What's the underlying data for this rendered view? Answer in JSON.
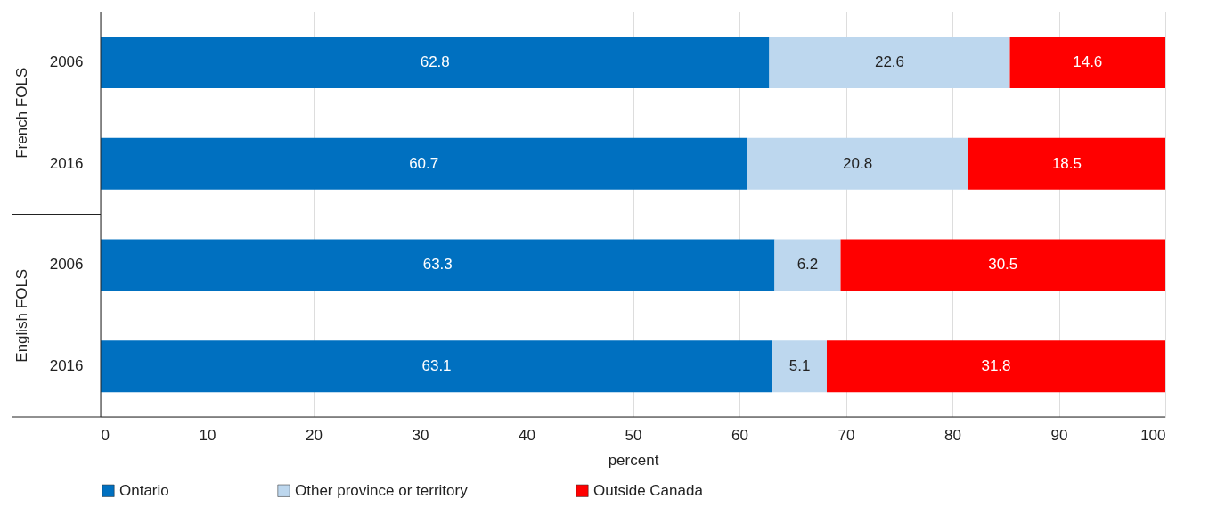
{
  "chart_data": {
    "type": "bar",
    "orientation": "horizontal",
    "stacked": true,
    "categories": [
      "2006",
      "2016",
      "2006",
      "2016"
    ],
    "series": [
      {
        "name": "Ontario",
        "color": "#0070c0",
        "values": [
          62.8,
          60.7,
          63.3,
          63.1
        ]
      },
      {
        "name": "Other province or territory",
        "color": "#bdd7ee",
        "values": [
          22.6,
          20.8,
          6.2,
          5.1
        ]
      },
      {
        "name": "Outside Canada",
        "color": "#ff0000",
        "values": [
          14.6,
          18.5,
          30.5,
          31.8
        ]
      }
    ],
    "annotations": [
      "French FOLS",
      "English FOLS"
    ],
    "xlabel": "percent",
    "xlim": [
      0,
      100
    ],
    "xticks": [
      0,
      10,
      20,
      30,
      40,
      50,
      60,
      70,
      80,
      90,
      100
    ],
    "grid": "x",
    "legend": "bottom",
    "data_labels": true
  }
}
